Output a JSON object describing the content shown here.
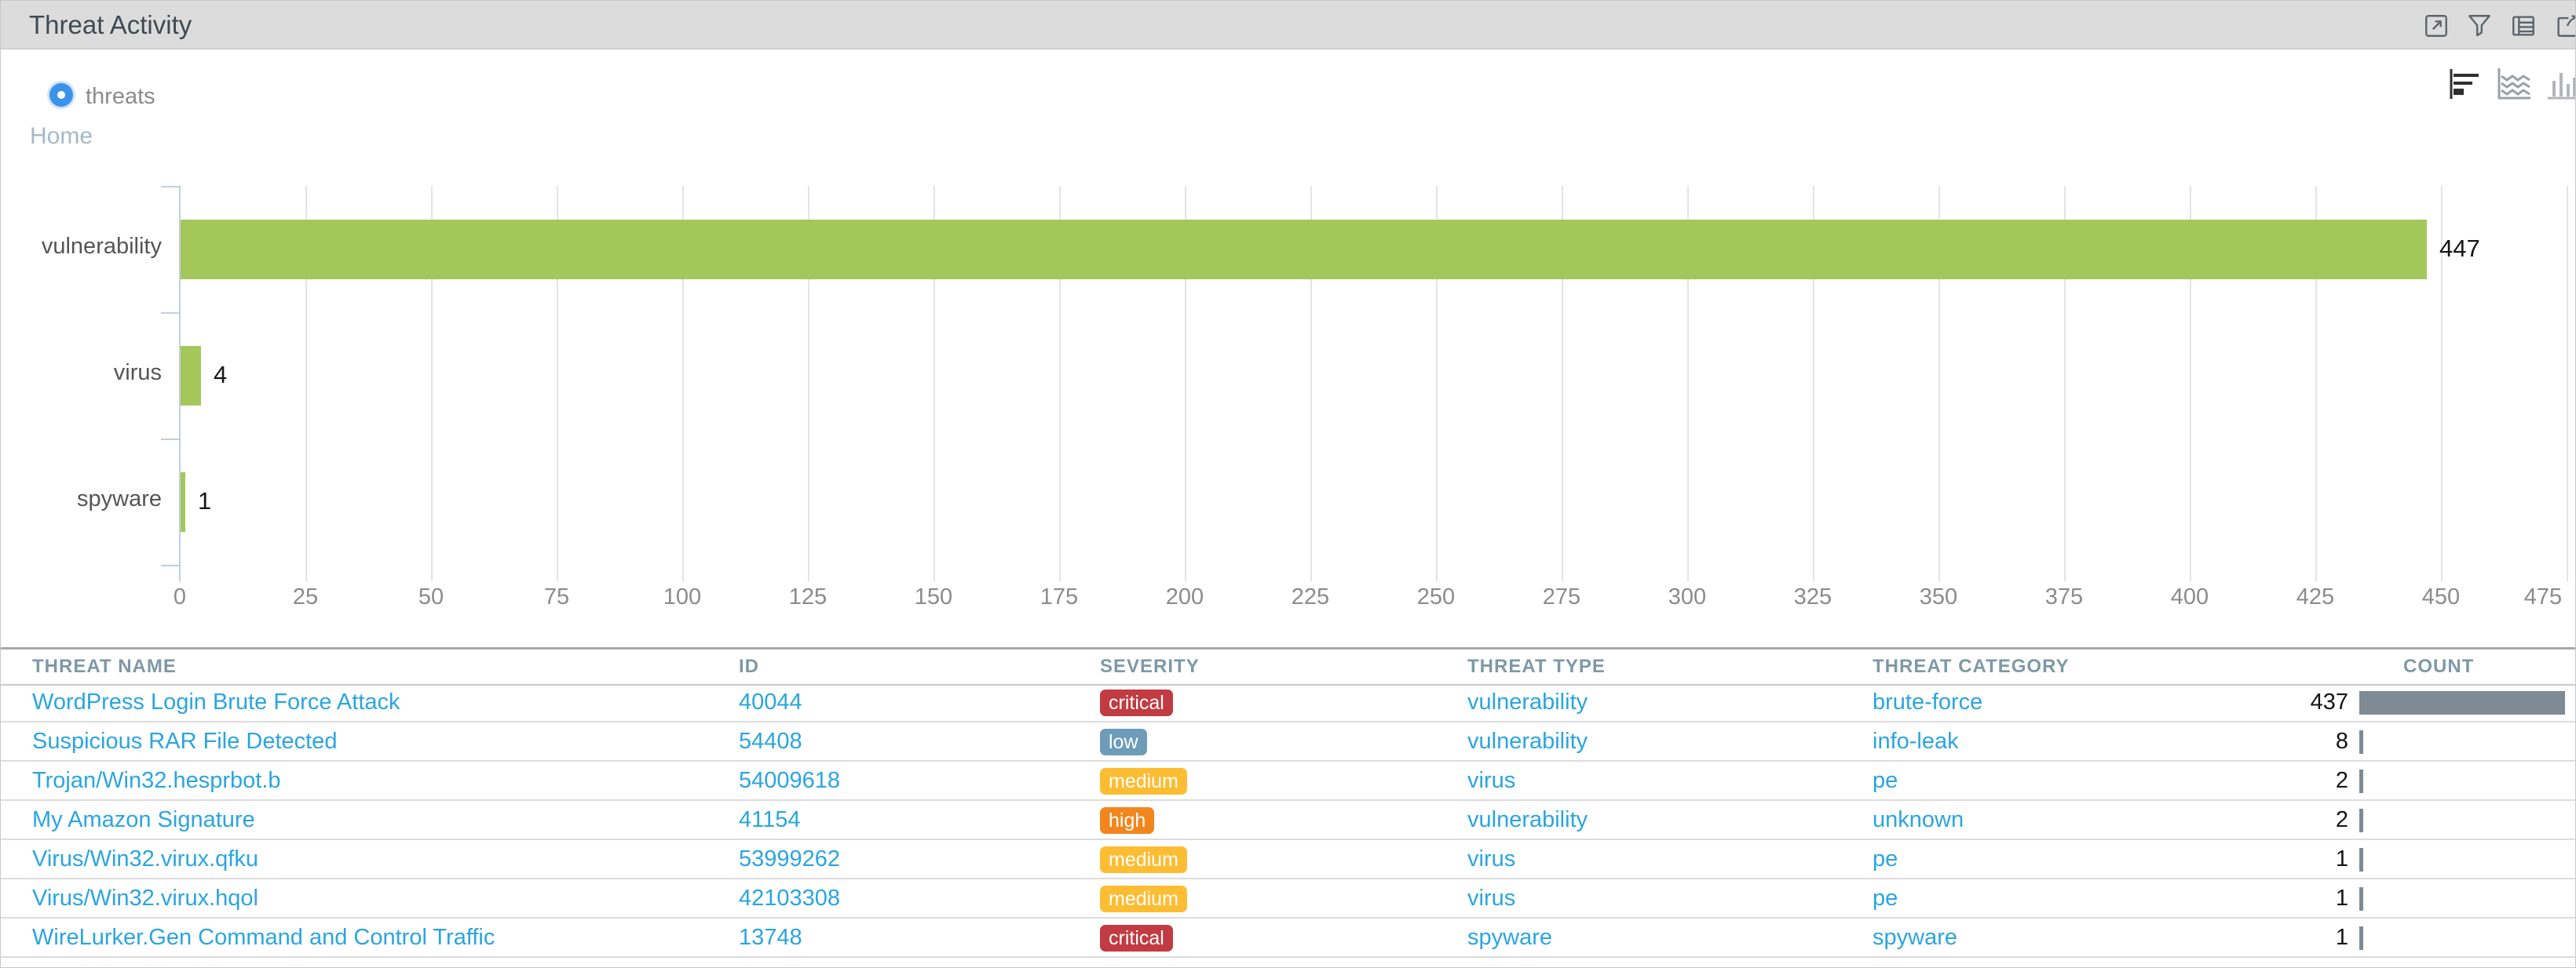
{
  "title_bar": {
    "title": "Threat Activity",
    "icons": [
      {
        "name": "open-in-window-icon"
      },
      {
        "name": "filter-icon"
      },
      {
        "name": "table-view-icon"
      },
      {
        "name": "export-icon"
      }
    ]
  },
  "toolbar": {
    "radio_label": "threats",
    "view_icons": [
      {
        "name": "horizontal-bar-chart-icon",
        "active": true
      },
      {
        "name": "area-chart-icon",
        "active": false
      },
      {
        "name": "column-chart-icon",
        "active": false
      }
    ]
  },
  "breadcrumb": {
    "label": "Home"
  },
  "chart_data": {
    "type": "bar",
    "orientation": "horizontal",
    "categories": [
      "vulnerability",
      "virus",
      "spyware"
    ],
    "values": [
      447,
      4,
      1
    ],
    "value_labels": [
      "447",
      "4",
      "1"
    ],
    "xlabel": "",
    "ylabel": "",
    "xlim": [
      0,
      475
    ],
    "xticks": [
      0,
      25,
      50,
      75,
      100,
      125,
      150,
      175,
      200,
      225,
      250,
      275,
      300,
      325,
      350,
      375,
      400,
      425,
      450,
      475
    ],
    "grid": true,
    "bar_color": "#a4c75c"
  },
  "table": {
    "columns": [
      "THREAT NAME",
      "ID",
      "SEVERITY",
      "THREAT TYPE",
      "THREAT CATEGORY",
      "COUNT"
    ],
    "max_count": 437,
    "rows": [
      {
        "name": "WordPress Login Brute Force Attack",
        "id": "40044",
        "severity": "critical",
        "type": "vulnerability",
        "category": "brute-force",
        "count": 437
      },
      {
        "name": "Suspicious RAR File Detected",
        "id": "54408",
        "severity": "low",
        "type": "vulnerability",
        "category": "info-leak",
        "count": 8
      },
      {
        "name": "Trojan/Win32.hesprbot.b",
        "id": "54009618",
        "severity": "medium",
        "type": "virus",
        "category": "pe",
        "count": 2
      },
      {
        "name": "My Amazon Signature",
        "id": "41154",
        "severity": "high",
        "type": "vulnerability",
        "category": "unknown",
        "count": 2
      },
      {
        "name": "Virus/Win32.virux.qfku",
        "id": "53999262",
        "severity": "medium",
        "type": "virus",
        "category": "pe",
        "count": 1
      },
      {
        "name": "Virus/Win32.virux.hqol",
        "id": "42103308",
        "severity": "medium",
        "type": "virus",
        "category": "pe",
        "count": 1
      },
      {
        "name": "WireLurker.Gen Command and Control Traffic",
        "id": "13748",
        "severity": "critical",
        "type": "spyware",
        "category": "spyware",
        "count": 1
      }
    ]
  },
  "colors": {
    "severity": {
      "critical": "#c23b42",
      "high": "#f1861e",
      "medium": "#fcbd33",
      "low": "#6d9cba"
    },
    "link": "#2aa5e0",
    "bar_green": "#a4c75c",
    "count_bar": "#7e8b94",
    "accent_blue": "#3b93ea"
  }
}
